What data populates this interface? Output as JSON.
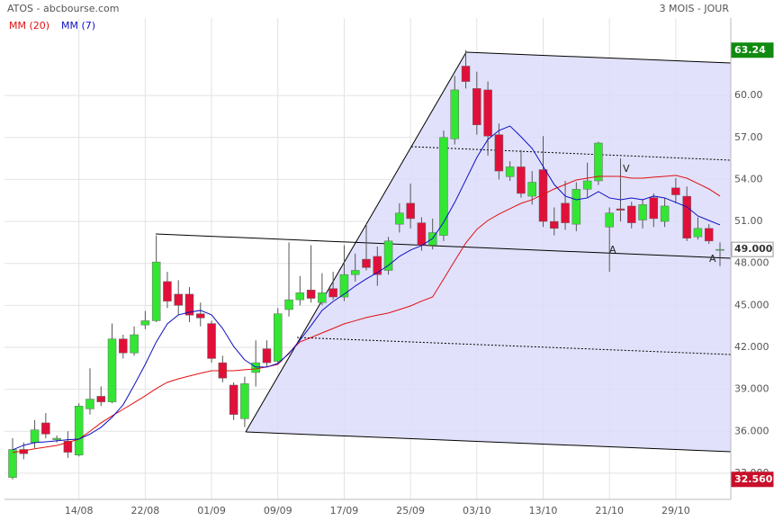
{
  "chart_data": {
    "type": "candlestick",
    "title": "ATOS - abcbourse.com",
    "subtitle": "3 MOIS - JOUR",
    "categories": [
      null,
      null,
      null,
      null,
      null,
      null,
      "14/08",
      null,
      null,
      null,
      null,
      null,
      "22/08",
      null,
      null,
      null,
      null,
      null,
      "01/09",
      null,
      null,
      null,
      null,
      null,
      "09/09",
      null,
      null,
      null,
      null,
      null,
      "17/09",
      null,
      null,
      null,
      null,
      null,
      "25/09",
      null,
      null,
      null,
      null,
      null,
      "03/10",
      null,
      null,
      null,
      null,
      null,
      "13/10",
      null,
      null,
      null,
      null,
      null,
      "21/10",
      null,
      null,
      null,
      null,
      null,
      "29/10",
      null,
      null,
      null,
      null
    ],
    "open": [
      32.7,
      34.7,
      35.2,
      36.6,
      35.4,
      35.3,
      34.3,
      37.6,
      38.5,
      38.1,
      42.6,
      41.6,
      43.6,
      43.9,
      46.7,
      45.8,
      45.8,
      44.4,
      43.7,
      40.9,
      39.3,
      36.9,
      40.2,
      41.9,
      41.0,
      44.7,
      45.4,
      46.1,
      45.2,
      46.2,
      45.6,
      47.2,
      48.3,
      48.5,
      47.5,
      50.8,
      52.3,
      50.9,
      49.3,
      50.0,
      56.9,
      62.1,
      60.5,
      60.4,
      57.2,
      54.2,
      54.9,
      52.8,
      54.7,
      51.0,
      52.3,
      50.8,
      53.3,
      53.9,
      50.6,
      51.9,
      52.1,
      51.1,
      52.7,
      51.0,
      53.4,
      52.8,
      49.9,
      50.5,
      49.0
    ],
    "high": [
      35.5,
      35.2,
      36.8,
      37.3,
      35.7,
      36.0,
      38.0,
      40.5,
      39.2,
      43.7,
      42.9,
      43.5,
      44.6,
      50.0,
      47.4,
      46.8,
      46.3,
      45.2,
      43.9,
      41.4,
      39.5,
      39.9,
      42.5,
      42.5,
      44.8,
      49.5,
      47.1,
      49.3,
      47.3,
      47.4,
      49.3,
      48.7,
      50.8,
      49.2,
      49.9,
      52.3,
      53.7,
      51.3,
      51.2,
      57.5,
      61.4,
      63.24,
      61.7,
      61.0,
      58.0,
      55.3,
      56.1,
      54.6,
      57.1,
      52.0,
      53.9,
      53.8,
      55.2,
      56.7,
      52.0,
      55.5,
      52.4,
      52.6,
      53.0,
      52.7,
      54.1,
      53.5,
      51.3,
      50.8,
      49.5
    ],
    "low": [
      32.56,
      34.0,
      34.8,
      35.5,
      35.2,
      34.1,
      34.2,
      37.2,
      37.8,
      38.0,
      41.2,
      41.4,
      43.3,
      43.8,
      44.8,
      44.3,
      43.8,
      43.5,
      40.9,
      39.5,
      36.8,
      36.3,
      39.2,
      40.6,
      40.8,
      44.2,
      45.0,
      45.2,
      45.0,
      45.4,
      45.3,
      46.7,
      47.5,
      46.4,
      47.2,
      50.2,
      50.5,
      48.9,
      49.0,
      49.6,
      56.5,
      60.5,
      57.2,
      55.7,
      54.0,
      53.9,
      52.7,
      52.2,
      50.6,
      50.0,
      50.4,
      50.3,
      52.7,
      53.6,
      47.4,
      51.0,
      50.5,
      50.5,
      50.6,
      50.6,
      52.3,
      49.6,
      49.7,
      49.4,
      47.8
    ],
    "close": [
      34.7,
      34.4,
      36.1,
      35.8,
      35.5,
      34.5,
      37.8,
      38.3,
      38.1,
      42.6,
      41.6,
      42.9,
      43.9,
      48.1,
      45.3,
      45.0,
      44.3,
      44.1,
      41.2,
      39.8,
      37.2,
      39.4,
      40.9,
      40.9,
      44.4,
      45.4,
      45.9,
      45.5,
      45.9,
      45.6,
      47.2,
      47.5,
      47.7,
      47.2,
      49.6,
      51.6,
      51.2,
      49.3,
      50.2,
      57.0,
      60.4,
      61.0,
      57.9,
      57.1,
      54.6,
      54.9,
      53.0,
      53.8,
      51.0,
      50.5,
      50.9,
      53.3,
      53.9,
      56.6,
      51.6,
      51.8,
      50.9,
      52.2,
      51.2,
      52.1,
      52.9,
      49.8,
      50.5,
      49.6,
      49.0
    ],
    "up_color": "#33e633",
    "down_color": "#e0103a",
    "series": [
      {
        "name": "MM (20)",
        "color": "#e01010",
        "values": [
          34.48,
          34.6,
          34.75,
          34.87,
          34.99,
          35.2,
          35.44,
          36.0,
          36.6,
          37.1,
          37.57,
          38.05,
          38.53,
          39.05,
          39.5,
          39.75,
          39.95,
          40.15,
          40.33,
          40.33,
          40.33,
          40.4,
          40.46,
          40.6,
          40.78,
          41.6,
          42.39,
          42.7,
          43.03,
          43.35,
          43.68,
          43.9,
          44.13,
          44.3,
          44.45,
          44.7,
          44.96,
          45.3,
          45.6,
          46.89,
          48.18,
          49.46,
          50.43,
          51.07,
          51.52,
          51.91,
          52.29,
          52.55,
          52.94,
          53.32,
          53.64,
          53.96,
          54.09,
          54.22,
          54.22,
          54.22,
          54.09,
          54.09,
          54.16,
          54.22,
          54.29,
          54.09,
          53.71,
          53.32,
          52.81
        ]
      },
      {
        "name": "MM (7)",
        "color": "#1010c0",
        "values": [
          34.67,
          35.0,
          35.19,
          35.25,
          35.32,
          35.4,
          35.44,
          35.8,
          36.28,
          37.0,
          37.89,
          39.3,
          40.78,
          42.39,
          43.68,
          44.32,
          44.51,
          44.64,
          44.32,
          43.35,
          42.07,
          41.1,
          40.59,
          40.59,
          40.85,
          41.55,
          42.52,
          43.55,
          44.64,
          45.28,
          45.8,
          46.38,
          46.89,
          47.34,
          47.86,
          48.5,
          48.95,
          49.27,
          49.78,
          50.94,
          52.36,
          53.96,
          55.57,
          56.86,
          57.5,
          57.82,
          57.05,
          56.22,
          54.93,
          53.64,
          52.81,
          52.55,
          52.68,
          53.13,
          52.68,
          52.55,
          52.68,
          52.55,
          52.81,
          52.68,
          52.36,
          52.04,
          51.39,
          51.07,
          50.75
        ]
      }
    ],
    "ylim": [
      31.13,
      65.54
    ],
    "yticks": [
      {
        "value": 33,
        "label": "33.000"
      },
      {
        "value": 36,
        "label": "36.000"
      },
      {
        "value": 39,
        "label": "39.000"
      },
      {
        "value": 42,
        "label": "42.000"
      },
      {
        "value": 45,
        "label": "45.000"
      },
      {
        "value": 48,
        "label": "48.000"
      },
      {
        "value": 51,
        "label": "51.00"
      },
      {
        "value": 54,
        "label": "54.00"
      },
      {
        "value": 57,
        "label": "57.00"
      },
      {
        "value": 60,
        "label": "60.00"
      }
    ],
    "grid": true,
    "period_high": {
      "value": 63.24,
      "label": "63.24"
    },
    "last": {
      "value": 49,
      "label": "49.000"
    },
    "period_low": {
      "value": 32.56,
      "label": "32.560"
    },
    "annotations": [
      "V",
      "A",
      "A"
    ]
  }
}
